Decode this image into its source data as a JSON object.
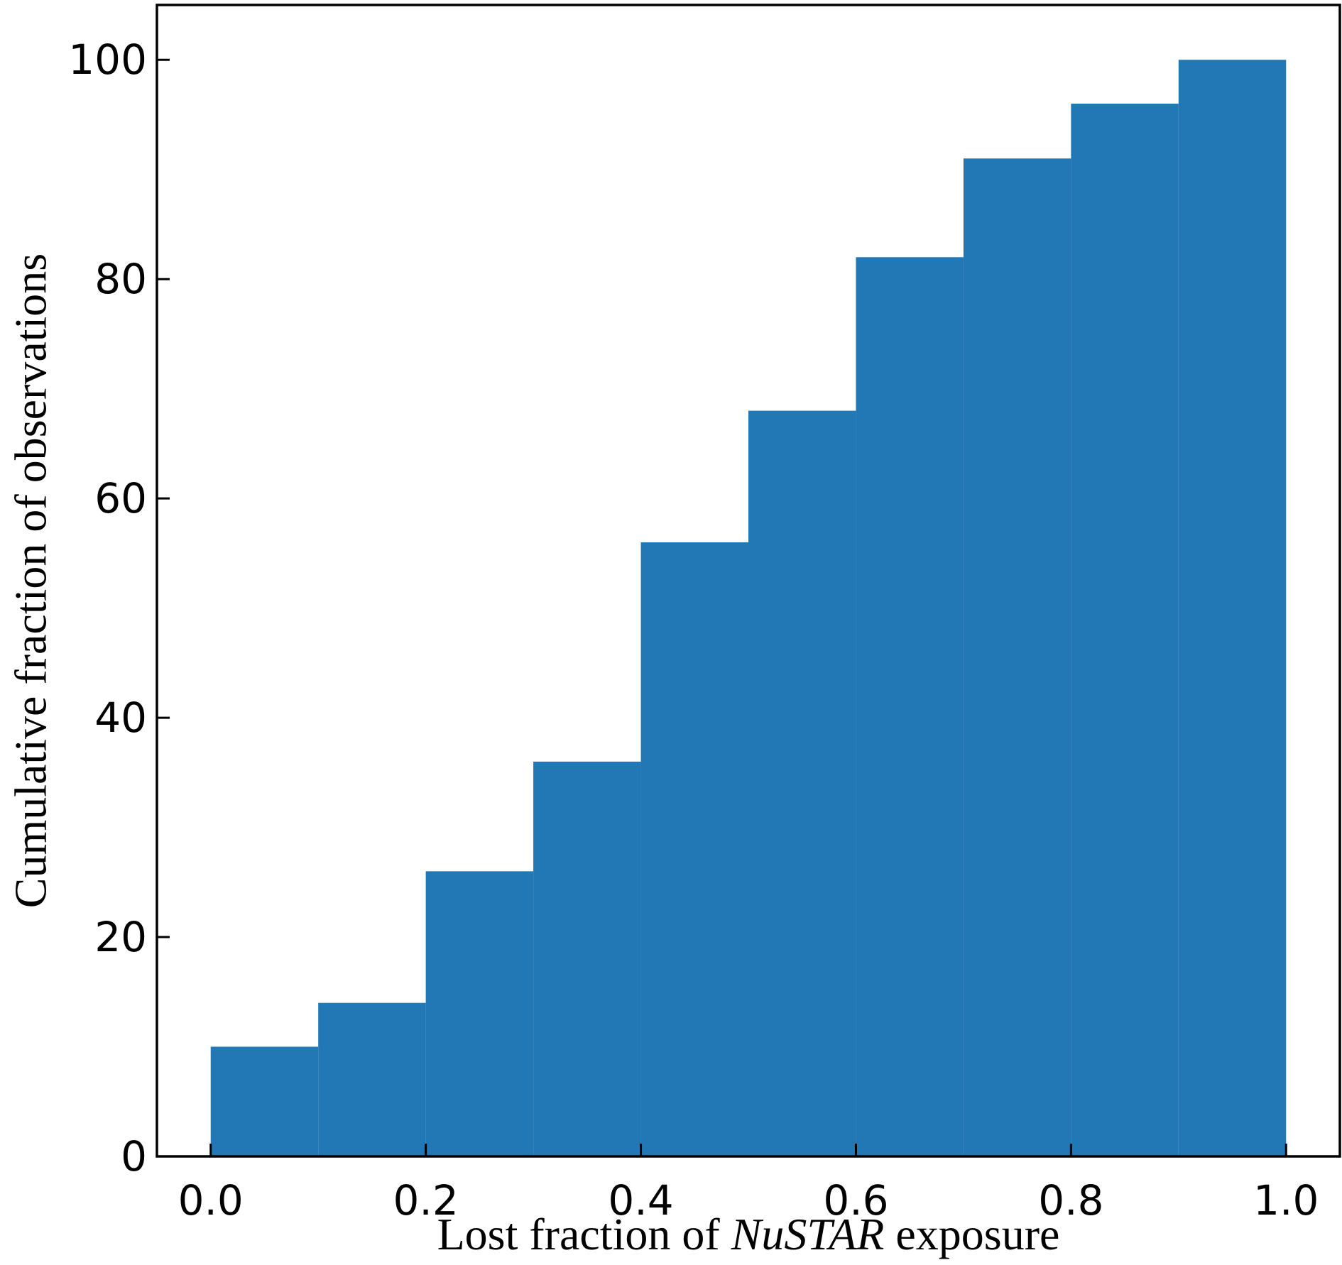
{
  "chart_data": {
    "type": "histogram",
    "xlabel": [
      "Lost fraction of ",
      "NuSTAR",
      " exposure"
    ],
    "ylabel": "Cumulative fraction of observations",
    "bins": [
      0.0,
      0.1,
      0.2,
      0.3,
      0.4,
      0.5,
      0.6,
      0.7,
      0.8,
      0.9,
      1.0
    ],
    "values": [
      10,
      14,
      26,
      36,
      56,
      68,
      82,
      91,
      96,
      100
    ],
    "color": "#2178b4",
    "xlim": [
      -0.05,
      1.05
    ],
    "ylim": [
      0,
      105
    ],
    "xticks": [
      {
        "value": 0,
        "label": "0.0"
      },
      0.2,
      0.4,
      0.6,
      0.8,
      {
        "value": 1,
        "label": "1.0"
      }
    ],
    "yticks": [
      0,
      20,
      40,
      60,
      80,
      100
    ],
    "grid": false
  }
}
